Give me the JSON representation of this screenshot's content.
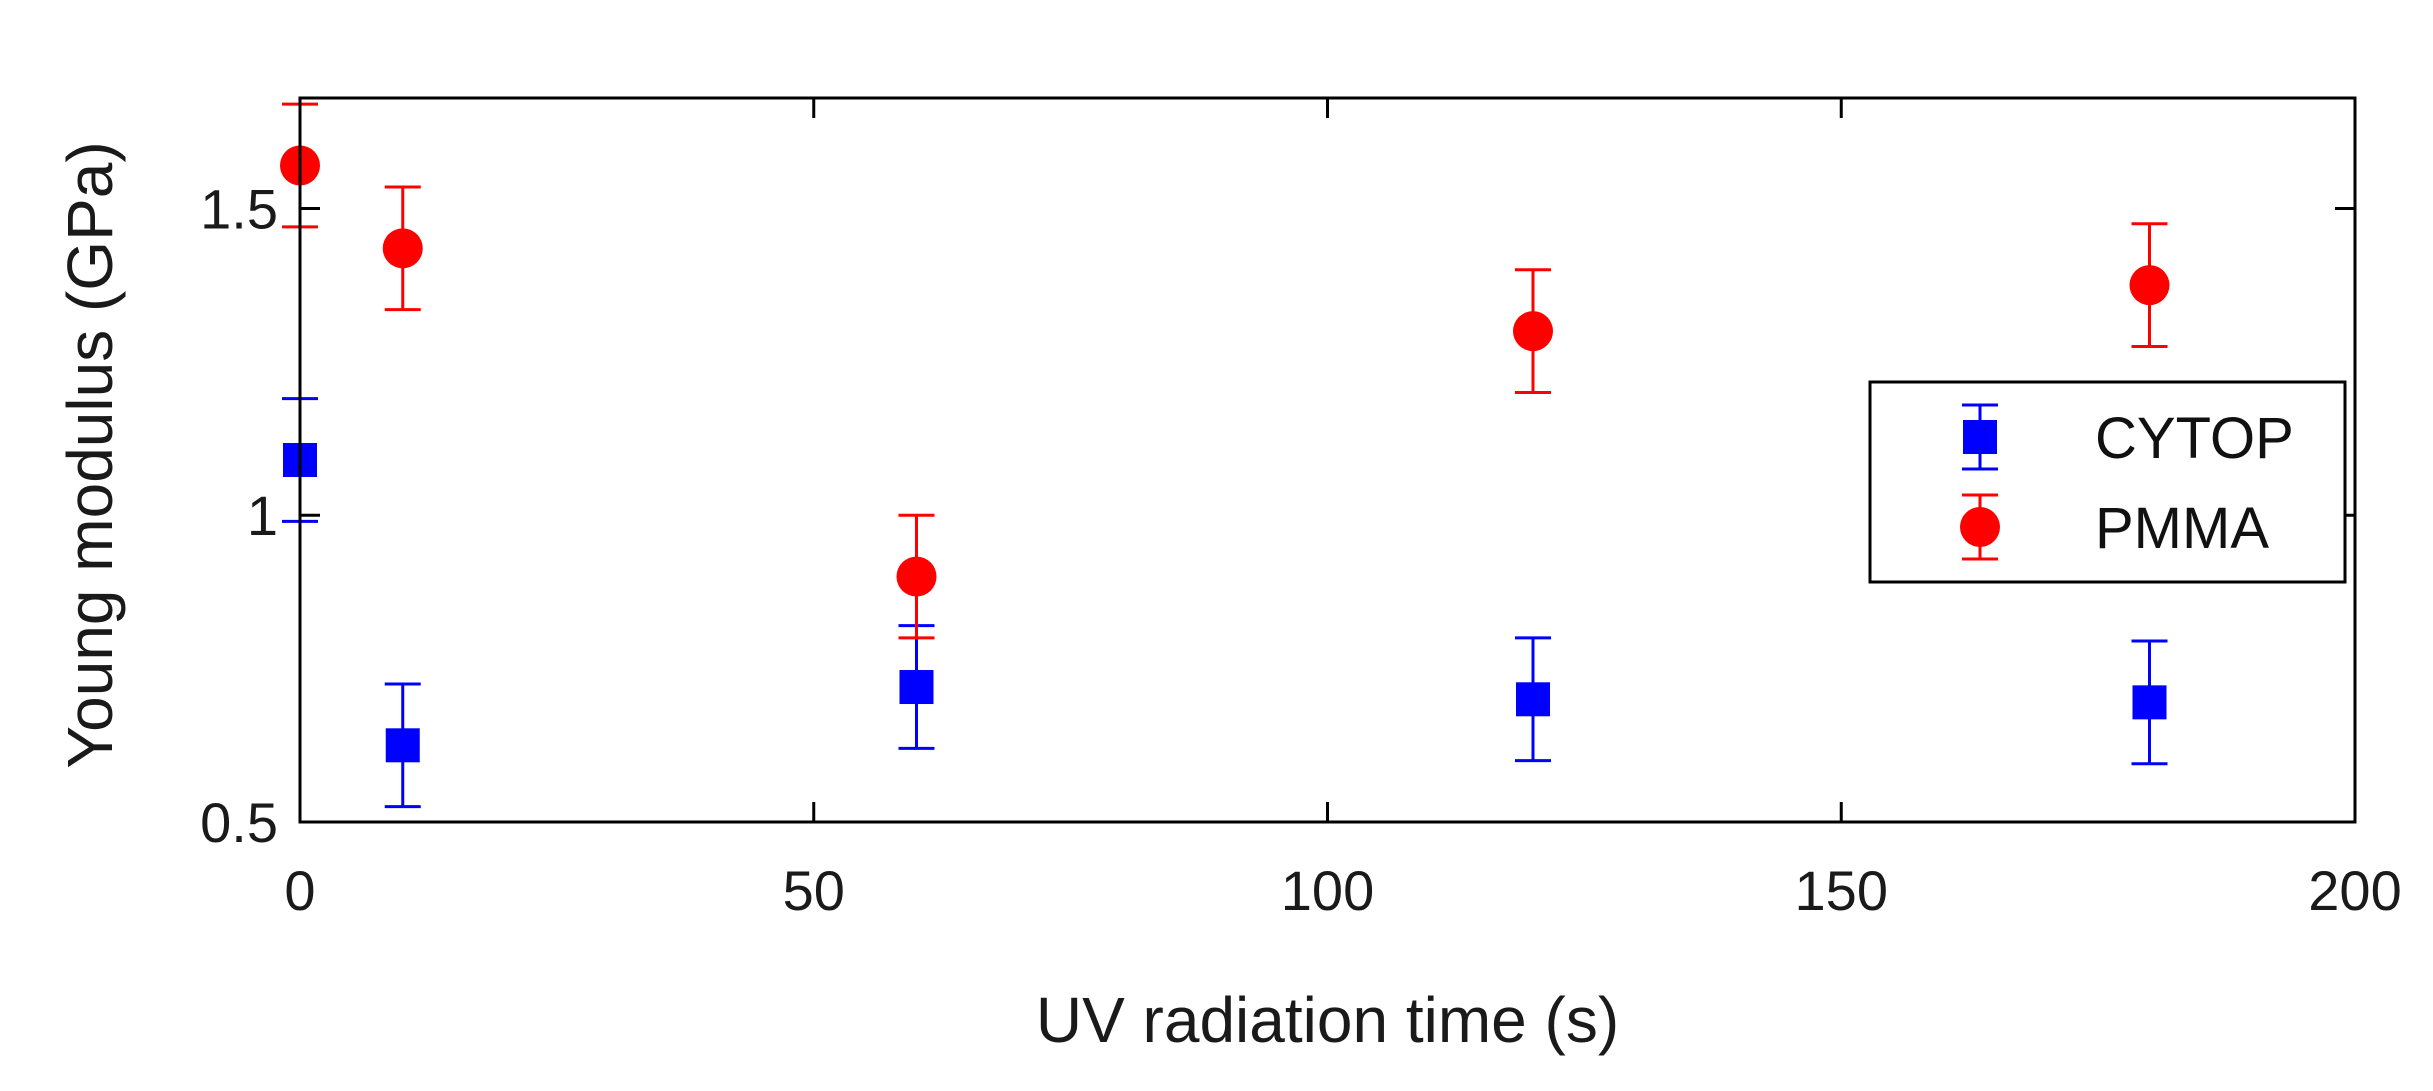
{
  "chart_data": {
    "type": "scatter",
    "title": "",
    "xlabel": "UV radiation time (s)",
    "ylabel": "Young modulus (GPa)",
    "xlim": [
      0,
      200
    ],
    "ylim": [
      0.5,
      1.68
    ],
    "xticks": [
      0,
      50,
      100,
      150,
      200
    ],
    "xtick_labels": [
      "0",
      "50",
      "100",
      "150",
      "200"
    ],
    "yticks": [
      0.5,
      1,
      1.5
    ],
    "ytick_labels": [
      "0.5",
      "1",
      "1.5"
    ],
    "grid": false,
    "legend_position": "right",
    "series": [
      {
        "name": "CYTOP",
        "marker": "square",
        "color": "#0000ff",
        "x": [
          0,
          10,
          60,
          120,
          180
        ],
        "y": [
          1.09,
          0.625,
          0.72,
          0.7,
          0.695
        ],
        "err": [
          0.1,
          0.1,
          0.1,
          0.1,
          0.1
        ]
      },
      {
        "name": "PMMA",
        "marker": "circle",
        "color": "#ff0000",
        "x": [
          0,
          10,
          60,
          120,
          180
        ],
        "y": [
          1.57,
          1.435,
          0.9,
          1.3,
          1.375
        ],
        "err": [
          0.1,
          0.1,
          0.1,
          0.1,
          0.1
        ]
      }
    ]
  }
}
